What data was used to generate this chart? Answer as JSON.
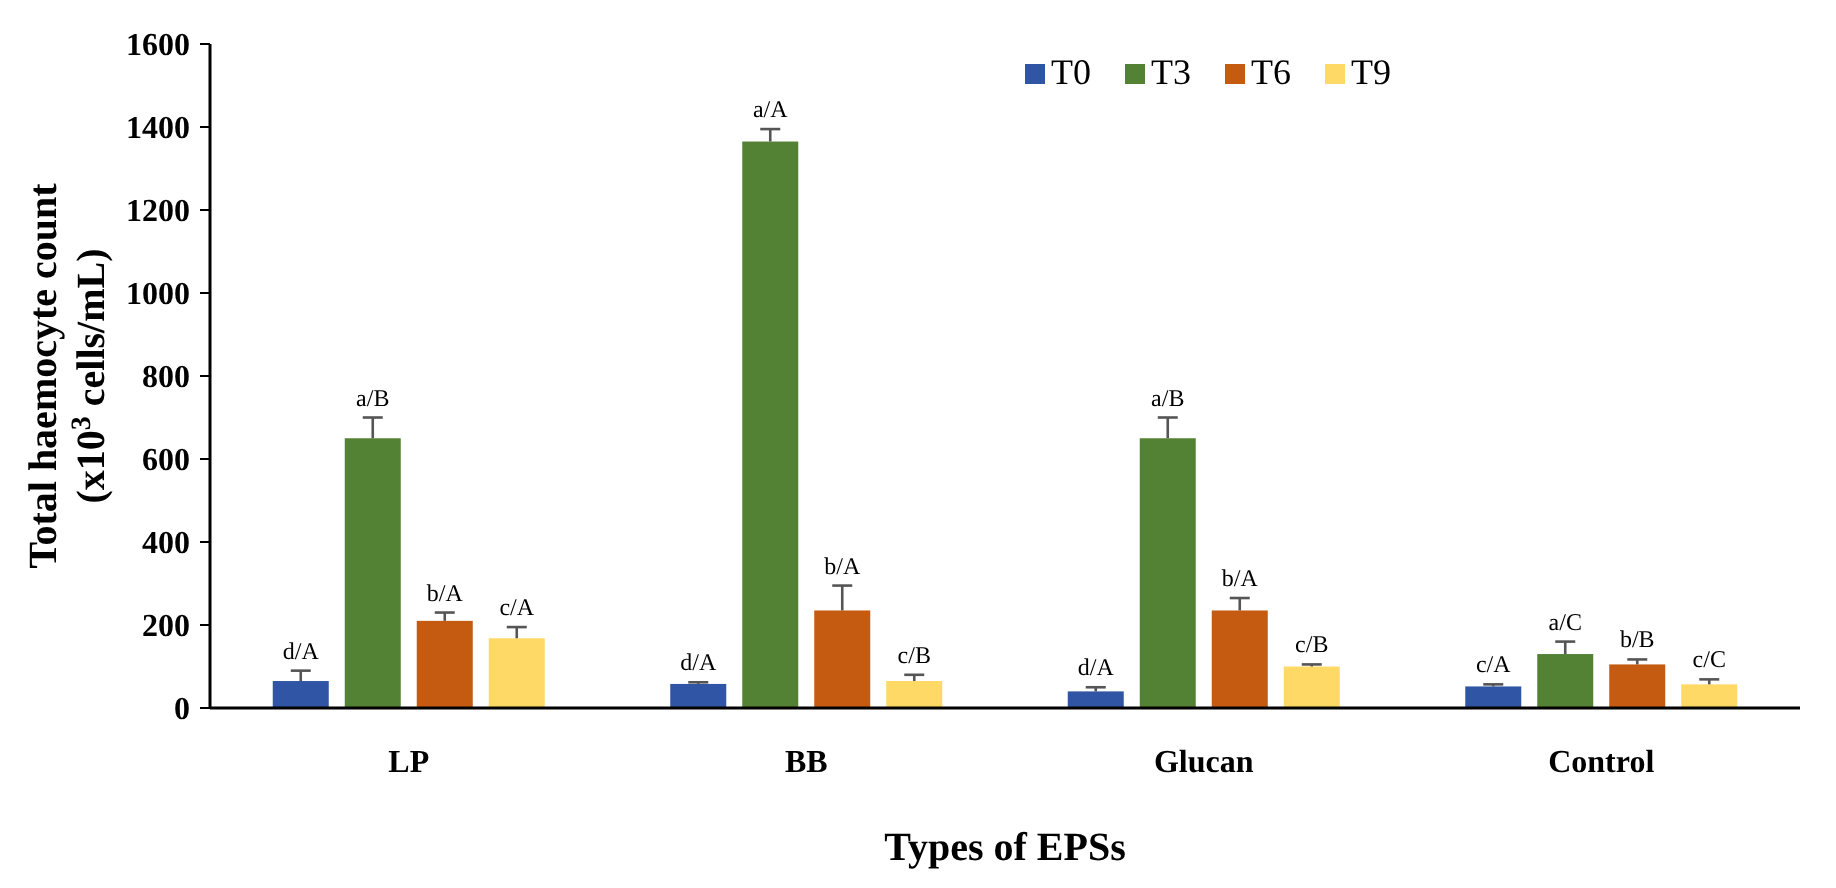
{
  "chart_data": {
    "type": "bar",
    "xlabel": "Types of EPSs",
    "ylabel": "Total haemocyte count\n(x10$^{3}$ cells/mL)",
    "categories": [
      "LP",
      "BB",
      "Glucan",
      "Control"
    ],
    "ylim": [
      0,
      1600
    ],
    "yticks": [
      0,
      200,
      400,
      600,
      800,
      1000,
      1200,
      1400,
      1600
    ],
    "grid": false,
    "legend": "top",
    "series": [
      {
        "name": "T0",
        "color": "#2f55a4",
        "values": [
          65,
          58,
          40,
          52
        ],
        "errors": [
          25,
          4,
          10,
          5
        ],
        "value_labels": [
          "d/A",
          "d/A",
          "d/A",
          "c/A"
        ]
      },
      {
        "name": "T3",
        "color": "#548235",
        "values": [
          650,
          1365,
          650,
          130
        ],
        "errors": [
          50,
          30,
          50,
          30
        ],
        "value_labels": [
          "a/B",
          "a/A",
          "a/B",
          "a/C"
        ]
      },
      {
        "name": "T6",
        "color": "#c55a11",
        "values": [
          210,
          235,
          235,
          105
        ],
        "errors": [
          20,
          60,
          30,
          12
        ],
        "value_labels": [
          "b/A",
          "b/A",
          "b/A",
          "b/B"
        ]
      },
      {
        "name": "T9",
        "color": "#ffd966",
        "values": [
          168,
          65,
          100,
          57
        ],
        "errors": [
          27,
          15,
          5,
          12
        ],
        "value_labels": [
          "c/A",
          "c/B",
          "c/B",
          "c/C"
        ]
      }
    ]
  }
}
